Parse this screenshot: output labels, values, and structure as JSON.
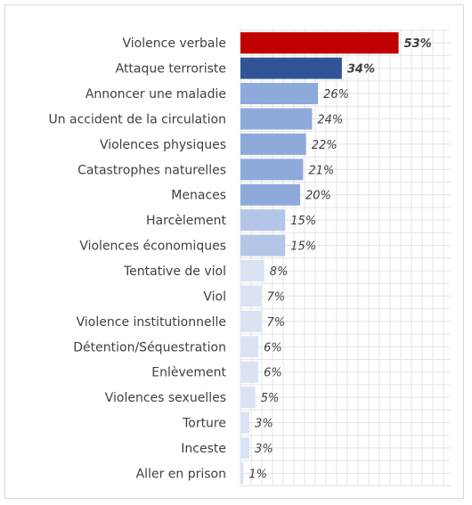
{
  "chart_data": {
    "type": "bar",
    "orientation": "horizontal",
    "categories": [
      "Violence verbale",
      "Attaque terroriste",
      "Annoncer une maladie",
      "Un accident de la circulation",
      "Violences physiques",
      "Catastrophes naturelles",
      "Menaces",
      "Harcèlement",
      "Violences économiques",
      "Tentative de viol",
      "Viol",
      "Violence institutionnelle",
      "Détention/Séquestration",
      "Enlèvement",
      "Violences sexuelles",
      "Torture",
      "Inceste",
      "Aller en prison"
    ],
    "values": [
      53,
      34,
      26,
      24,
      22,
      21,
      20,
      15,
      15,
      8,
      7,
      7,
      6,
      6,
      5,
      3,
      3,
      1
    ],
    "value_labels": [
      "53%",
      "34%",
      "26%",
      "24%",
      "22%",
      "21%",
      "20%",
      "15%",
      "15%",
      "8%",
      "7%",
      "7%",
      "6%",
      "6%",
      "5%",
      "3%",
      "3%",
      "1%"
    ],
    "xlim": [
      0,
      60
    ],
    "grid": true,
    "legend": "none",
    "colors": {
      "top": "#c00000",
      "second": "#2f5597",
      "high": "#8eaadb",
      "mid": "#b4c6e7",
      "low": "#dae3f3",
      "highlight_label": "#c00000",
      "label": "#404040",
      "grid": "#e4e4e4",
      "frame": "#d9d9d9"
    }
  }
}
